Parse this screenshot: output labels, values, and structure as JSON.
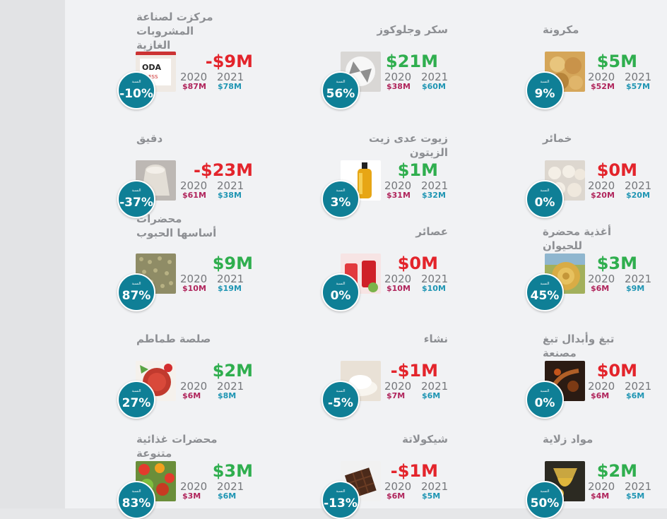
{
  "items": [
    {
      "id": "carbonated-concentrates",
      "title": "مركزت لصناعة\nالمشروبات الغازية",
      "change": "-$9M",
      "sign": "neg",
      "year_2020": "2020",
      "year_2021": "2021",
      "value_2020": "$87M",
      "value_2021": "$78M",
      "badge_label": "النسبة",
      "percent": "-10%",
      "icon": "soda-image"
    },
    {
      "id": "sugar-glucose",
      "title": "سكر وجلوكوز",
      "change": "$21M",
      "sign": "pos",
      "year_2020": "2020",
      "year_2021": "2021",
      "value_2020": "$38M",
      "value_2021": "$60M",
      "badge_label": "النسبة",
      "percent": "56%",
      "icon": "sugar-image"
    },
    {
      "id": "pasta",
      "title": "مكرونة",
      "change": "$5M",
      "sign": "pos",
      "year_2020": "2020",
      "year_2021": "2021",
      "value_2020": "$52M",
      "value_2021": "$57M",
      "badge_label": "النسبة",
      "percent": "9%",
      "icon": "pasta-image"
    },
    {
      "id": "flour",
      "title": "دقيق",
      "change": "-$23M",
      "sign": "neg",
      "year_2020": "2020",
      "year_2021": "2021",
      "value_2020": "$61M",
      "value_2021": "$38M",
      "badge_label": "النسبة",
      "percent": "-37%",
      "icon": "flour-sack-image"
    },
    {
      "id": "non-olive-oils",
      "title": "زيوت عدى زيت الزيتون",
      "change": "$1M",
      "sign": "pos",
      "year_2020": "2020",
      "year_2021": "2021",
      "value_2020": "$31M",
      "value_2021": "$32M",
      "badge_label": "النسبة",
      "percent": "3%",
      "icon": "oil-bottle-image"
    },
    {
      "id": "yeast",
      "title": "خمائر",
      "change": "$0M",
      "sign": "neg",
      "year_2020": "2020",
      "year_2021": "2021",
      "value_2020": "$20M",
      "value_2021": "$20M",
      "badge_label": "النسبة",
      "percent": "0%",
      "icon": "dough-image"
    },
    {
      "id": "cereal-preparations",
      "title": "محضرات\nأساسها الحبوب",
      "change": "$9M",
      "sign": "pos",
      "year_2020": "2020",
      "year_2021": "2021",
      "value_2020": "$10M",
      "value_2021": "$19M",
      "badge_label": "النسبة",
      "percent": "87%",
      "icon": "grains-image"
    },
    {
      "id": "juices",
      "title": "عصائر",
      "change": "$0M",
      "sign": "neg",
      "year_2020": "2020",
      "year_2021": "2021",
      "value_2020": "$10M",
      "value_2021": "$10M",
      "badge_label": "النسبة",
      "percent": "0%",
      "icon": "juice-image"
    },
    {
      "id": "animal-feed",
      "title": "أغذية محضرة للحيوان",
      "change": "$3M",
      "sign": "pos",
      "year_2020": "2020",
      "year_2021": "2021",
      "value_2020": "$6M",
      "value_2021": "$9M",
      "badge_label": "النسبة",
      "percent": "45%",
      "icon": "hay-bale-image"
    },
    {
      "id": "tomato-sauce",
      "title": "صلصة طماطم",
      "change": "$2M",
      "sign": "pos",
      "year_2020": "2020",
      "year_2021": "2021",
      "value_2020": "$6M",
      "value_2021": "$8M",
      "badge_label": "النسبة",
      "percent": "27%",
      "icon": "tomato-sauce-image"
    },
    {
      "id": "starch",
      "title": "نشاء",
      "change": "-$1M",
      "sign": "neg",
      "year_2020": "2020",
      "year_2021": "2021",
      "value_2020": "$7M",
      "value_2021": "$6M",
      "badge_label": "النسبة",
      "percent": "-5%",
      "icon": "starch-powder-image"
    },
    {
      "id": "tobacco",
      "title": "تبغ وأبدال تبغ مصنعة",
      "change": "$0M",
      "sign": "neg",
      "year_2020": "2020",
      "year_2021": "2021",
      "value_2020": "$6M",
      "value_2021": "$6M",
      "badge_label": "النسبة",
      "percent": "0%",
      "icon": "tobacco-image"
    },
    {
      "id": "misc-food",
      "title": "محضرات غذائية متنوعة",
      "change": "$3M",
      "sign": "pos",
      "year_2020": "2020",
      "year_2021": "2021",
      "value_2020": "$3M",
      "value_2021": "$6M",
      "badge_label": "النسبة",
      "percent": "83%",
      "icon": "vegetables-image"
    },
    {
      "id": "chocolate",
      "title": "شيكولاتة",
      "change": "-$1M",
      "sign": "neg",
      "year_2020": "2020",
      "year_2021": "2021",
      "value_2020": "$6M",
      "value_2021": "$5M",
      "badge_label": "النسبة",
      "percent": "-13%",
      "icon": "chocolate-image"
    },
    {
      "id": "gelatinous",
      "title": "مواد زلاية",
      "change": "$2M",
      "sign": "pos",
      "year_2020": "2020",
      "year_2021": "2021",
      "value_2020": "$4M",
      "value_2021": "$5M",
      "badge_label": "النسبة",
      "percent": "50%",
      "icon": "honey-image"
    }
  ],
  "colors": {
    "positive": "#2fae4e",
    "negative": "#e3242b",
    "value_2020": "#b0255c",
    "value_2021": "#1f95b3",
    "badge": "#0f7f96"
  }
}
